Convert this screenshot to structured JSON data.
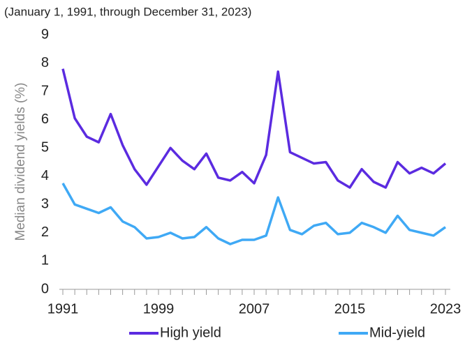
{
  "chart_data": {
    "type": "line",
    "subtitle": "(January 1, 1991, through December 31, 2023)",
    "y_label": "Median dividend yields (%)",
    "x": [
      1991,
      1992,
      1993,
      1994,
      1995,
      1996,
      1997,
      1998,
      1999,
      2000,
      2001,
      2002,
      2003,
      2004,
      2005,
      2006,
      2007,
      2008,
      2009,
      2010,
      2011,
      2012,
      2013,
      2014,
      2015,
      2016,
      2017,
      2018,
      2019,
      2020,
      2021,
      2022,
      2023
    ],
    "series": [
      {
        "name": "High yield",
        "color": "#5b2be0",
        "values": [
          7.8,
          6.05,
          5.4,
          5.2,
          6.2,
          5.1,
          4.25,
          3.7,
          4.35,
          5.0,
          4.55,
          4.25,
          4.8,
          3.95,
          3.85,
          4.15,
          3.75,
          4.75,
          7.7,
          4.85,
          4.65,
          4.45,
          4.5,
          3.85,
          3.6,
          4.25,
          3.8,
          3.6,
          4.5,
          4.1,
          4.3,
          4.1,
          4.45
        ]
      },
      {
        "name": "Mid-yield",
        "color": "#3fa9f5",
        "values": [
          3.75,
          3.0,
          2.85,
          2.7,
          2.9,
          2.4,
          2.2,
          1.8,
          1.85,
          2.0,
          1.8,
          1.85,
          2.2,
          1.8,
          1.6,
          1.75,
          1.75,
          1.9,
          3.25,
          2.1,
          1.95,
          2.25,
          2.35,
          1.95,
          2.0,
          2.35,
          2.2,
          2.0,
          2.6,
          2.1,
          2.0,
          1.9,
          2.2
        ]
      }
    ],
    "xlim": [
      1991,
      2023
    ],
    "xticks": [
      1991,
      1999,
      2007,
      2015,
      2023
    ],
    "ylim": [
      0,
      9
    ],
    "yticks": [
      0,
      1,
      2,
      3,
      4,
      5,
      6,
      7,
      8,
      9
    ],
    "grid": false,
    "legend": "bottom"
  }
}
